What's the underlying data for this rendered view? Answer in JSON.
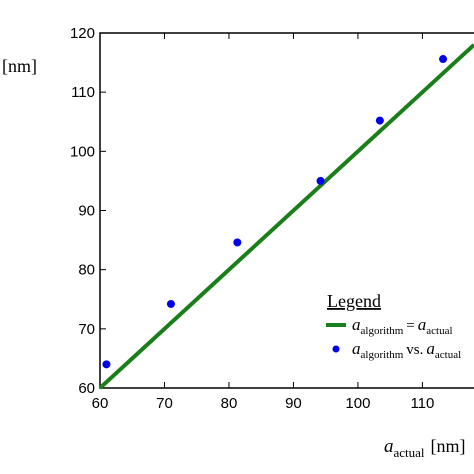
{
  "chart_data": {
    "type": "scatter",
    "title": "",
    "xlabel": {
      "var": "a",
      "sub": "actual",
      "unit": "[nm]"
    },
    "ylabel_unit": "[nm]",
    "xlim": [
      60,
      118
    ],
    "ylim": [
      60,
      120
    ],
    "xticks": [
      60,
      70,
      80,
      90,
      100,
      110
    ],
    "yticks": [
      60,
      70,
      80,
      90,
      100,
      110,
      120
    ],
    "grid": false,
    "legend": {
      "title": "Legend",
      "placement": "bottom-right",
      "line_item": {
        "lhs_var": "a",
        "lhs_sub": "algorithm",
        "rel": "=",
        "rhs_var": "a",
        "rhs_sub": "actual"
      },
      "dot_item": {
        "lhs_var": "a",
        "lhs_sub": "algorithm",
        "rel": "vs.",
        "rhs_var": "a",
        "rhs_sub": "actual"
      }
    },
    "series": [
      {
        "kind": "line",
        "color": "#1a7f1a",
        "x": [
          60,
          118
        ],
        "y": [
          60,
          118
        ]
      },
      {
        "kind": "scatter",
        "color": "#0000e6",
        "x": [
          61,
          71,
          81.3,
          94.2,
          103.4,
          113.2
        ],
        "y": [
          64,
          74.2,
          84.6,
          95,
          105.2,
          115.6
        ]
      }
    ]
  }
}
